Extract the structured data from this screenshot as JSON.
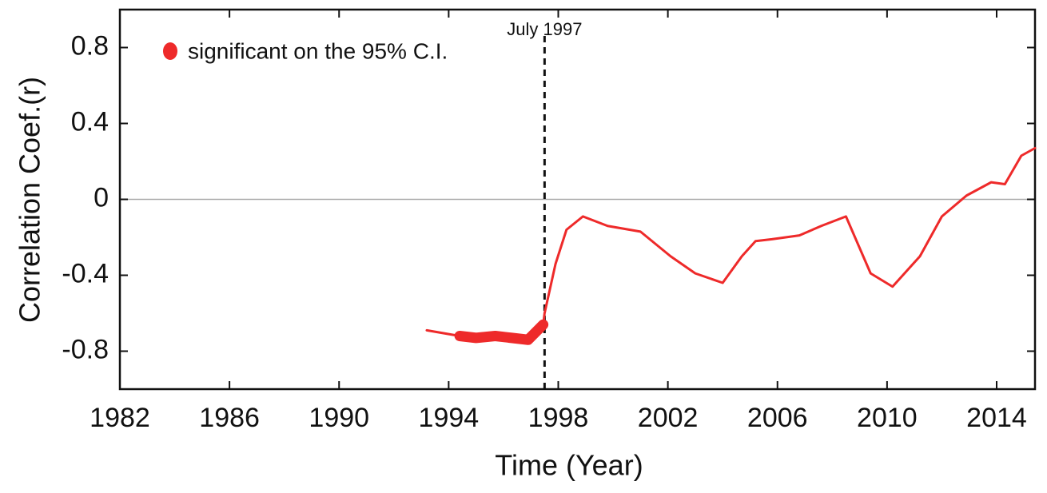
{
  "chart_data": {
    "type": "line",
    "x_label": "Time (Year)",
    "y_label": "Correlation Coef.(r)",
    "x": [
      1993.2,
      1994.4,
      1995.0,
      1995.7,
      1996.3,
      1996.9,
      1997.45,
      1997.5,
      1997.9,
      1998.3,
      1998.9,
      1999.8,
      2001.0,
      2002.1,
      2003.0,
      2004.0,
      2004.7,
      2005.2,
      2005.8,
      2006.8,
      2007.6,
      2008.5,
      2009.4,
      2010.2,
      2011.2,
      2012.0,
      2012.9,
      2013.8,
      2014.3,
      2014.9,
      2015.4
    ],
    "series": [
      {
        "color": "#ee2a2a",
        "values": [
          -0.69,
          -0.72,
          -0.73,
          -0.72,
          -0.73,
          -0.74,
          -0.66,
          -0.6,
          -0.34,
          -0.16,
          -0.09,
          -0.14,
          -0.17,
          -0.3,
          -0.39,
          -0.44,
          -0.3,
          -0.22,
          -0.21,
          -0.19,
          -0.14,
          -0.09,
          -0.39,
          -0.46,
          -0.3,
          -0.09,
          0.02,
          0.09,
          0.08,
          0.23,
          0.27
        ]
      },
      {
        "name": "significant on the 95% C.I.",
        "color": "#ee2a2a",
        "values": [
          null,
          -0.72,
          -0.73,
          -0.72,
          -0.73,
          -0.74,
          -0.66,
          null,
          null,
          null,
          null,
          null,
          null,
          null,
          null,
          null,
          null,
          null,
          null,
          null,
          null,
          null,
          null,
          null,
          null,
          null,
          null,
          null,
          null,
          null,
          null
        ]
      }
    ],
    "xlim": [
      1982,
      2015.4
    ],
    "ylim": [
      -1,
      1
    ],
    "xticks": [
      1982,
      1986,
      1990,
      1994,
      1998,
      2002,
      2006,
      2010,
      2014
    ],
    "yticks": [
      0.8,
      0.4,
      0,
      -0.4,
      -0.8
    ],
    "zero_line": true,
    "grid": false,
    "legend": "upper left",
    "annotations": [
      {
        "text": "July 1997",
        "x": 1997.5
      }
    ]
  }
}
